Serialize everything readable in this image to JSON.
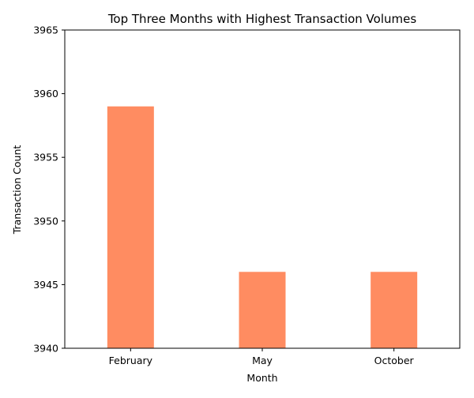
{
  "chart_data": {
    "type": "bar",
    "title": "Top Three Months with Highest Transaction Volumes",
    "xlabel": "Month",
    "ylabel": "Transaction Count",
    "categories": [
      "February",
      "May",
      "October"
    ],
    "values": [
      3959,
      3946,
      3946
    ],
    "ylim": [
      3940,
      3965
    ],
    "yticks": [
      3940,
      3945,
      3950,
      3955,
      3960,
      3965
    ],
    "bar_color": "#ff8c61",
    "grid": false,
    "legend": "none"
  }
}
